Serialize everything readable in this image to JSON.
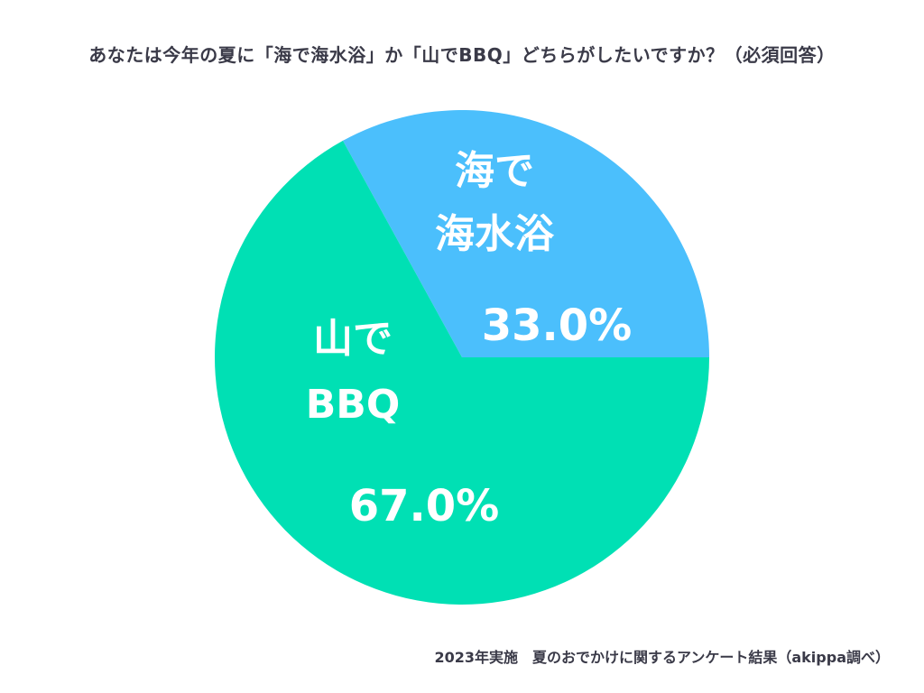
{
  "title": "あなたは今年の夏に「海で海水浴」か「山でBBQ」どちらがしたいですか？（必須回答）",
  "footnote": "2023年実施　夏のおでかけに関するアンケート結果（akippa調べ）",
  "chart_data": {
    "type": "pie",
    "title": "あなたは今年の夏に「海で海水浴」か「山でBBQ」どちらがしたいですか？（必須回答）",
    "start_angle_deg": 0,
    "direction": "counterclockwise",
    "legend": "none",
    "slices": [
      {
        "name_lines": [
          "海で",
          "海水浴"
        ],
        "value": 33.0,
        "value_label": "33.0%",
        "color": "#4bbffc"
      },
      {
        "name_lines": [
          "山で",
          "BBQ"
        ],
        "value": 67.0,
        "value_label": "67.0%",
        "color": "#00e0b4"
      }
    ]
  }
}
